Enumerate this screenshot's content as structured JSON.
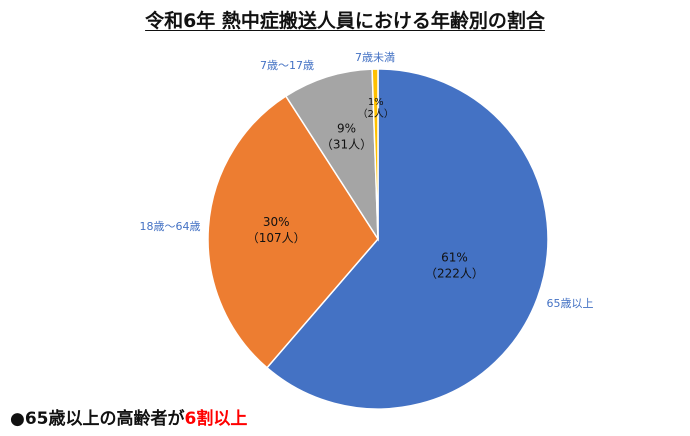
{
  "title": "令和6年  熱中症搬送人員における年齢別の割合",
  "chart_data": {
    "type": "pie",
    "title": "令和6年  熱中症搬送人員における年齢別の割合",
    "slices": [
      {
        "category": "65歳以上",
        "percent_label": "61%",
        "count_label": "（222人）",
        "value": 222,
        "color": "#4472c4"
      },
      {
        "category": "18歳～64歳",
        "percent_label": "30%",
        "count_label": "（107人）",
        "value": 107,
        "color": "#ed7d31"
      },
      {
        "category": "7歳～17歳",
        "percent_label": "9%",
        "count_label": "（31人）",
        "value": 31,
        "color": "#a5a5a5"
      },
      {
        "category": "7歳未満",
        "percent_label": "1%",
        "count_label": "（2人）",
        "value": 2,
        "color": "#ffc000"
      }
    ]
  },
  "footnote": {
    "bullet": "●",
    "prefix": "65歳以上の高齢者が",
    "highlight": "6割以上"
  }
}
